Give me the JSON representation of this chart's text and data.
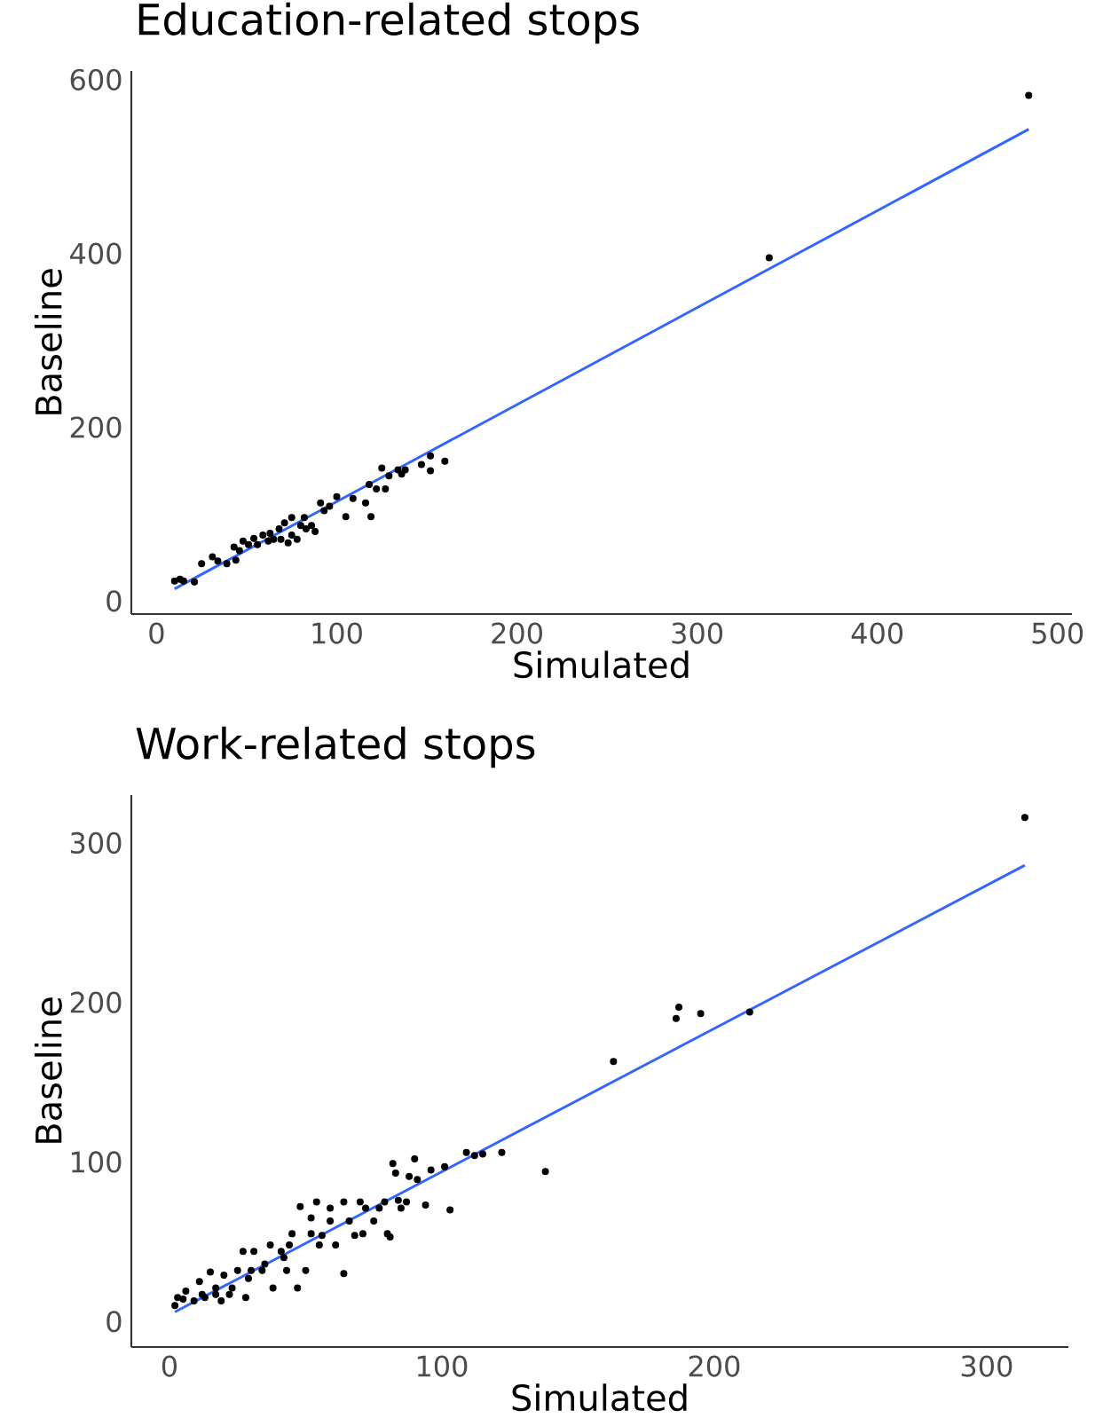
{
  "chart_data": [
    {
      "type": "scatter",
      "title": "Education-related stops",
      "xlabel": "Simulated",
      "ylabel": "Baseline",
      "xlim": [
        -14,
        508
      ],
      "ylim": [
        -15,
        610
      ],
      "xticks": [
        0,
        100,
        200,
        300,
        400,
        500
      ],
      "yticks": [
        0,
        200,
        400,
        600
      ],
      "series": [
        {
          "marker": "circle",
          "color": "#000000",
          "x": [
            484,
            340,
            10,
            13,
            15,
            21,
            25,
            31,
            34,
            39,
            44,
            43,
            46,
            48,
            51,
            54,
            56,
            59,
            62,
            63,
            65,
            68,
            69,
            71,
            73,
            75,
            75,
            78,
            80,
            82,
            83,
            86,
            88,
            91,
            93,
            96,
            100,
            105,
            109,
            116,
            118,
            119,
            122,
            125,
            127,
            129,
            134,
            136,
            138,
            147,
            152,
            152,
            160
          ],
          "values": [
            582,
            395,
            23,
            25,
            23,
            22,
            43,
            51,
            46,
            43,
            47,
            62,
            58,
            69,
            65,
            72,
            65,
            76,
            69,
            78,
            71,
            83,
            71,
            90,
            67,
            96,
            76,
            71,
            87,
            96,
            83,
            87,
            80,
            113,
            104,
            109,
            120,
            97,
            118,
            113,
            134,
            97,
            129,
            153,
            129,
            144,
            151,
            146,
            151,
            157,
            167,
            150,
            161
          ]
        },
        {
          "type": "line",
          "marker": "none",
          "color": "#3366ff",
          "x": [
            10,
            484
          ],
          "values": [
            14,
            543
          ]
        }
      ]
    },
    {
      "type": "scatter",
      "title": "Work-related stops",
      "xlabel": "Simulated",
      "ylabel": "Baseline",
      "xlim": [
        -14,
        330
      ],
      "ylim": [
        -16,
        330
      ],
      "xticks": [
        0,
        100,
        200,
        300
      ],
      "yticks": [
        0,
        100,
        200,
        300
      ],
      "series": [
        {
          "marker": "circle",
          "color": "#000000",
          "x": [
            314,
            213,
            195,
            186,
            187,
            163,
            138,
            122,
            115,
            112,
            109,
            103,
            101,
            96,
            94,
            90,
            91,
            88,
            82,
            83,
            87,
            85,
            80,
            81,
            77,
            70,
            64,
            71,
            68,
            64,
            54,
            48,
            59,
            52,
            47,
            50,
            45,
            41,
            37,
            31,
            27,
            43,
            38,
            34,
            29,
            25,
            20,
            15,
            17,
            11,
            6,
            3,
            2,
            13,
            22,
            28,
            9,
            61,
            66,
            75,
            59,
            56,
            52,
            44,
            35,
            30,
            17,
            23,
            19,
            12,
            5,
            42,
            55,
            72,
            79,
            84
          ],
          "values": [
            316,
            194,
            193,
            190,
            197,
            163,
            94,
            106,
            105,
            104,
            106,
            70,
            97,
            95,
            73,
            102,
            89,
            91,
            99,
            93,
            75,
            71,
            55,
            53,
            71,
            75,
            75,
            55,
            54,
            30,
            75,
            72,
            63,
            55,
            21,
            32,
            55,
            44,
            48,
            44,
            44,
            32,
            21,
            32,
            27,
            32,
            29,
            31,
            21,
            25,
            19,
            15,
            10,
            15,
            17,
            15,
            13,
            48,
            63,
            63,
            71,
            54,
            65,
            48,
            36,
            32,
            17,
            21,
            13,
            17,
            14,
            40,
            48,
            71,
            75,
            76
          ]
        },
        {
          "type": "line",
          "marker": "none",
          "color": "#3366ff",
          "x": [
            2,
            314
          ],
          "values": [
            6,
            286
          ]
        }
      ]
    }
  ]
}
